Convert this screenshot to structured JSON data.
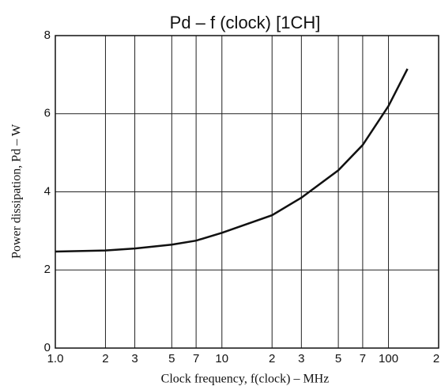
{
  "chart_data": {
    "type": "line",
    "title": "Pd  –  f (clock) [1CH]",
    "xlabel": "Clock frequency, f(clock) – MHz",
    "ylabel": "Power dissipation, Pd – W",
    "x": [
      1,
      2,
      3,
      5,
      7,
      10,
      20,
      30,
      50,
      70,
      100,
      130
    ],
    "values": [
      2.47,
      2.5,
      2.55,
      2.65,
      2.75,
      2.95,
      3.4,
      3.85,
      4.55,
      5.2,
      6.2,
      7.15
    ],
    "color": "#111111",
    "xscale": "log",
    "xlim": [
      1,
      200
    ],
    "ylim": [
      0,
      8
    ],
    "xticks": [
      {
        "value": 1,
        "label": "1.0"
      },
      2,
      3,
      5,
      7,
      10,
      {
        "value": 20,
        "label": "2"
      },
      {
        "value": 30,
        "label": "3"
      },
      {
        "value": 50,
        "label": "5"
      },
      {
        "value": 70,
        "label": "7"
      },
      100,
      {
        "value": 200,
        "label": "2"
      }
    ],
    "yticks": [
      0,
      2,
      4,
      6,
      8
    ],
    "grid": true
  }
}
